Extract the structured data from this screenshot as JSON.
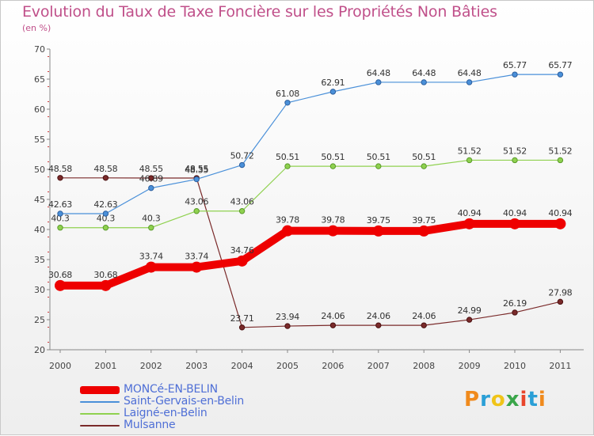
{
  "title": "Evolution du Taux de Taxe Foncière sur les Propriétés Non Bâties",
  "unit_label": "(en %)",
  "logo": {
    "text": "Proxiti",
    "letters": [
      "P",
      "r",
      "o",
      "x",
      "i",
      "t",
      "i"
    ],
    "colors": [
      "#f08a1c",
      "#2a9fd6",
      "#f0c419",
      "#3aa64a",
      "#e8452c",
      "#2a9fd6",
      "#f08a1c"
    ]
  },
  "chart_data": {
    "type": "line",
    "x": [
      2000,
      2001,
      2002,
      2003,
      2004,
      2005,
      2006,
      2007,
      2008,
      2009,
      2010,
      2011
    ],
    "ylim": [
      20,
      70
    ],
    "yticks": [
      20,
      25,
      30,
      35,
      40,
      45,
      50,
      55,
      60,
      65,
      70
    ],
    "grid": false,
    "legend_position": "bottom-left",
    "series": [
      {
        "name": "MONCé-EN-BELIN",
        "color": "#ee0000",
        "values": [
          30.68,
          30.68,
          33.74,
          33.74,
          34.76,
          39.78,
          39.78,
          39.75,
          39.75,
          40.94,
          40.94,
          40.94
        ],
        "labels": [
          "30.68",
          "30.68",
          "33.74",
          "33.74",
          "34.76",
          "39.78",
          "39.78",
          "39.75",
          "39.75",
          "40.94",
          "40.94",
          "40.94"
        ]
      },
      {
        "name": "Saint-Gervais-en-Belin",
        "color": "#4a90d9",
        "values": [
          42.63,
          42.63,
          46.89,
          48.35,
          50.72,
          61.08,
          62.91,
          64.48,
          64.48,
          64.48,
          65.77,
          65.77
        ],
        "labels": [
          "42.63",
          "42.63",
          "46.89",
          "48.35",
          "50.72",
          "61.08",
          "62.91",
          "64.48",
          "64.48",
          "64.48",
          "65.77",
          "65.77"
        ]
      },
      {
        "name": "Laigné-en-Belin",
        "color": "#8fd14f",
        "values": [
          40.3,
          40.3,
          40.3,
          43.06,
          43.06,
          50.51,
          50.51,
          50.51,
          50.51,
          51.52,
          51.52,
          51.52
        ],
        "labels": [
          "40.3",
          "40.3",
          "40.3",
          "43.06",
          "43.06",
          "50.51",
          "50.51",
          "50.51",
          "50.51",
          "51.52",
          "51.52",
          "51.52"
        ]
      },
      {
        "name": "Mulsanne",
        "color": "#7a2a2a",
        "values": [
          48.58,
          48.58,
          48.55,
          48.55,
          23.71,
          23.94,
          24.06,
          24.06,
          24.06,
          24.99,
          26.19,
          27.98
        ],
        "labels": [
          "48.58",
          "48.58",
          "48.55",
          "48.55",
          "23.71",
          "23.94",
          "24.06",
          "24.06",
          "24.06",
          "24.99",
          "26.19",
          "27.98"
        ]
      }
    ]
  }
}
